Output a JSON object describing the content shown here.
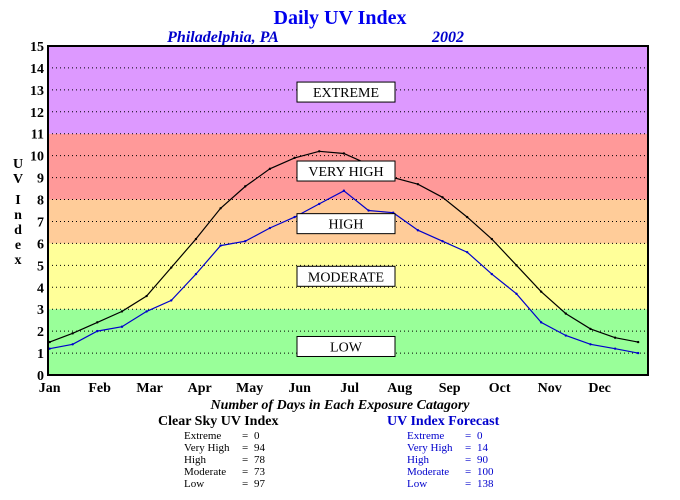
{
  "colors": {
    "low": "#99ff99",
    "moderate": "#ffff99",
    "high": "#ffcc99",
    "very_high": "#ff9999",
    "extreme": "#dd99ff",
    "clear_sky_line": "#000000",
    "forecast_line": "#0000cc",
    "title": "#0000ee"
  },
  "chart_data": {
    "type": "line",
    "title": "Daily UV Index",
    "subtitle_left": "Philadelphia, PA",
    "subtitle_right": "2002",
    "ylabel": "UV Index",
    "ylim": [
      0,
      15
    ],
    "yticks": [
      "0",
      "1",
      "2",
      "3",
      "4",
      "5",
      "6",
      "7",
      "8",
      "9",
      "10",
      "11",
      "12",
      "13",
      "14",
      "15"
    ],
    "xlim": [
      0,
      365
    ],
    "months": [
      "Jan",
      "Feb",
      "Mar",
      "Apr",
      "May",
      "Jun",
      "Jul",
      "Aug",
      "Sep",
      "Oct",
      "Nov",
      "Dec"
    ],
    "grid": true,
    "bands": [
      {
        "label": "LOW",
        "from": 0,
        "to": 3,
        "color_key": "low"
      },
      {
        "label": "MODERATE",
        "from": 3,
        "to": 6,
        "color_key": "moderate"
      },
      {
        "label": "HIGH",
        "from": 6,
        "to": 8,
        "color_key": "high"
      },
      {
        "label": "VERY HIGH",
        "from": 8,
        "to": 11,
        "color_key": "very_high"
      },
      {
        "label": "EXTREME",
        "from": 11,
        "to": 15,
        "color_key": "extreme"
      }
    ],
    "band_label_values": [
      1.3,
      4.5,
      6.9,
      9.3,
      12.9
    ],
    "series": [
      {
        "name": "Clear Sky UV Index",
        "color_key": "clear_sky_line",
        "x": [
          1,
          15,
          30,
          45,
          60,
          75,
          90,
          105,
          120,
          135,
          150,
          165,
          180,
          195,
          210,
          225,
          240,
          255,
          270,
          285,
          300,
          315,
          330,
          345,
          359
        ],
        "y": [
          1.5,
          1.9,
          2.4,
          2.9,
          3.6,
          4.9,
          6.2,
          7.6,
          8.6,
          9.4,
          9.9,
          10.2,
          10.1,
          9.6,
          9.0,
          8.7,
          8.1,
          7.2,
          6.2,
          5.0,
          3.8,
          2.8,
          2.1,
          1.7,
          1.5
        ]
      },
      {
        "name": "UV Index Forecast",
        "color_key": "forecast_line",
        "x": [
          1,
          15,
          30,
          45,
          60,
          75,
          90,
          105,
          120,
          135,
          150,
          165,
          180,
          195,
          210,
          225,
          240,
          255,
          270,
          285,
          300,
          315,
          330,
          345,
          359
        ],
        "y": [
          1.2,
          1.4,
          2.0,
          2.2,
          2.9,
          3.4,
          4.6,
          5.9,
          6.1,
          6.7,
          7.2,
          7.8,
          8.4,
          7.5,
          7.4,
          6.6,
          6.1,
          5.6,
          4.6,
          3.7,
          2.4,
          1.8,
          1.4,
          1.2,
          1.0
        ]
      }
    ]
  },
  "summary": {
    "caption": "Number of Days in Each Exposure Catagory",
    "clear_sky": {
      "title": "Clear Sky UV Index",
      "rows": [
        {
          "label": "Extreme",
          "eq": "=",
          "value": "0"
        },
        {
          "label": "Very High",
          "eq": "=",
          "value": "94"
        },
        {
          "label": "High",
          "eq": "=",
          "value": "78"
        },
        {
          "label": "Moderate",
          "eq": "=",
          "value": "73"
        },
        {
          "label": "Low",
          "eq": "=",
          "value": "97"
        }
      ]
    },
    "forecast": {
      "title": "UV Index Forecast",
      "rows": [
        {
          "label": "Extreme",
          "eq": "=",
          "value": "0"
        },
        {
          "label": "Very High",
          "eq": "=",
          "value": "14"
        },
        {
          "label": "High",
          "eq": "=",
          "value": "90"
        },
        {
          "label": "Moderate",
          "eq": "=",
          "value": "100"
        },
        {
          "label": "Low",
          "eq": "=",
          "value": "138"
        }
      ]
    }
  }
}
